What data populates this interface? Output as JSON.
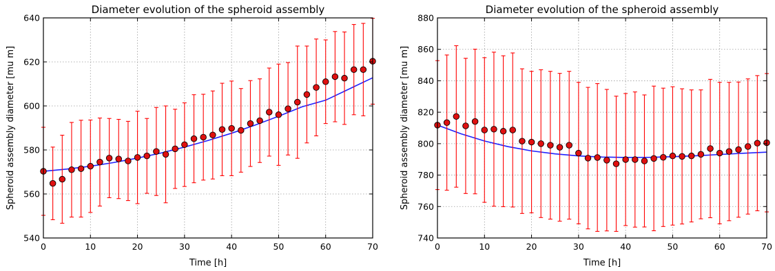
{
  "chart_data": [
    {
      "type": "scatter",
      "title": "Diameter evolution of the spheroid assembly",
      "xlabel": "Time [h]",
      "ylabel": "Spheroid assembly diameter [mu m]",
      "xlim": [
        0,
        70
      ],
      "ylim": [
        540,
        640
      ],
      "xticks": [
        "0",
        "10",
        "20",
        "30",
        "40",
        "50",
        "60",
        "70"
      ],
      "yticks": [
        "540",
        "560",
        "580",
        "600",
        "620",
        "640"
      ],
      "grid": true,
      "colors": {
        "points": "#e01010",
        "errorbars": "#ff0000",
        "fit": "#2020ff"
      },
      "series": [
        {
          "kind": "errorbar",
          "x": [
            0,
            2,
            4,
            6,
            8,
            10,
            12,
            14,
            16,
            18,
            20,
            22,
            24,
            26,
            28,
            30,
            32,
            34,
            36,
            38,
            40,
            42,
            44,
            46,
            48,
            50,
            52,
            54,
            56,
            58,
            60,
            62,
            64,
            66,
            68,
            70
          ],
          "y": [
            570.3,
            564.8,
            566.7,
            571,
            571.5,
            572.6,
            574.5,
            576.3,
            575.9,
            575,
            576.6,
            577.3,
            579.3,
            578,
            580.5,
            582.4,
            585.1,
            585.8,
            586.8,
            589.3,
            589.8,
            588.9,
            592,
            593.3,
            597.2,
            596,
            598.7,
            601.7,
            605.2,
            608.4,
            611,
            613.3,
            612.6,
            616.5,
            616.5,
            620.3
          ],
          "err": [
            20,
            16.5,
            20,
            21.5,
            22,
            21,
            20,
            18,
            18,
            18,
            21,
            17,
            20,
            22,
            18,
            19,
            20,
            19.5,
            20,
            21,
            21.5,
            19,
            19.5,
            19,
            20,
            23,
            21,
            25.5,
            22,
            22,
            19,
            20.5,
            21,
            20.5,
            21,
            19.5
          ]
        },
        {
          "kind": "fit",
          "x": [
            0,
            5,
            10,
            15,
            20,
            25,
            30,
            35,
            40,
            45,
            50,
            55,
            60,
            65,
            70
          ],
          "y": [
            570.3,
            571.3,
            572.6,
            574.3,
            576.3,
            578.6,
            581.3,
            584.3,
            587.6,
            591.3,
            595.3,
            599.6,
            602.6,
            607.7,
            612.8
          ]
        }
      ]
    },
    {
      "type": "scatter",
      "title": "Diameter evolution of the spheroid assembly",
      "xlabel": "Time [h]",
      "ylabel": "Spheroid assembly diameter [mu m]",
      "xlim": [
        0,
        70
      ],
      "ylim": [
        740,
        880
      ],
      "xticks": [
        "0",
        "10",
        "20",
        "30",
        "40",
        "50",
        "60",
        "70"
      ],
      "yticks": [
        "740",
        "760",
        "780",
        "800",
        "820",
        "840",
        "860",
        "880"
      ],
      "grid": true,
      "colors": {
        "points": "#e01010",
        "errorbars": "#ff0000",
        "fit": "#2020ff"
      },
      "series": [
        {
          "kind": "errorbar",
          "x": [
            0,
            2,
            4,
            6,
            8,
            10,
            12,
            14,
            16,
            18,
            20,
            22,
            24,
            26,
            28,
            30,
            32,
            34,
            36,
            38,
            40,
            42,
            44,
            46,
            48,
            50,
            52,
            54,
            56,
            58,
            60,
            62,
            64,
            66,
            68,
            70
          ],
          "y": [
            811.8,
            813.4,
            817.3,
            811.3,
            814.1,
            808.7,
            809.2,
            807.9,
            808.7,
            801.6,
            801,
            800,
            799,
            797.7,
            799,
            794,
            790.8,
            791.2,
            789.5,
            787.2,
            789.9,
            789.9,
            789,
            790.6,
            791.3,
            792.2,
            791.9,
            792.2,
            793.2,
            796.9,
            794,
            795,
            796.2,
            798.2,
            800.3,
            800.6
          ],
          "err": [
            41,
            43,
            45,
            43,
            46,
            46,
            49,
            48,
            49,
            46,
            45,
            47,
            47,
            47,
            47,
            45,
            45,
            47,
            45,
            43,
            42,
            43,
            42,
            46,
            44,
            44,
            43,
            42,
            41,
            44,
            45,
            44,
            43,
            43,
            43,
            44
          ]
        },
        {
          "kind": "fit",
          "x": [
            0,
            5,
            10,
            15,
            20,
            25,
            30,
            35,
            40,
            45,
            50,
            55,
            60,
            65,
            70
          ],
          "y": [
            811.8,
            806.3,
            801.7,
            798.1,
            795.4,
            793.5,
            792.2,
            791.5,
            791.2,
            791.3,
            791.7,
            792.3,
            793.1,
            793.9,
            794.6
          ]
        }
      ]
    }
  ]
}
